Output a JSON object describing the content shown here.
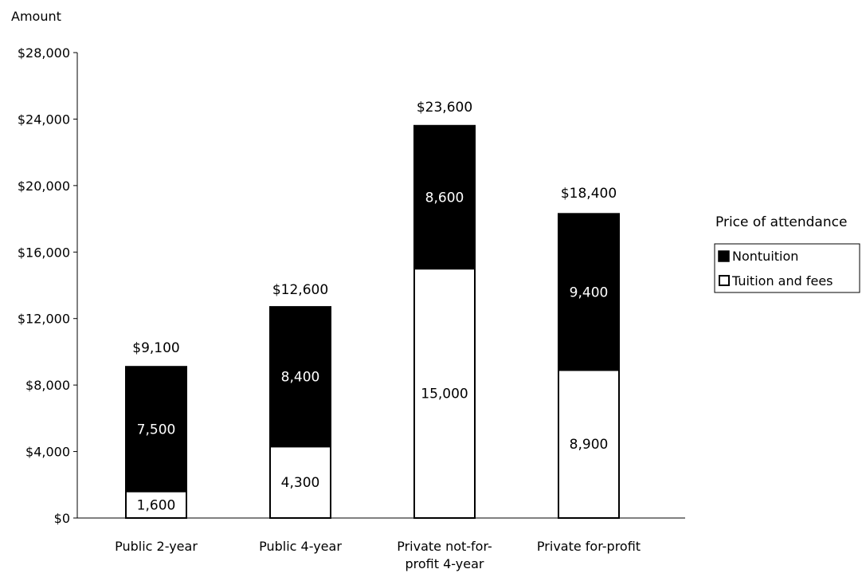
{
  "chart_data": {
    "type": "bar",
    "stacked": true,
    "ylabel": "Amount",
    "ylim": [
      0,
      28000
    ],
    "yticks": [
      0,
      4000,
      8000,
      12000,
      16000,
      20000,
      24000,
      28000
    ],
    "ytick_labels": [
      "$0",
      "$4,000",
      "$8,000",
      "$12,000",
      "$16,000",
      "$20,000",
      "$24,000",
      "$28,000"
    ],
    "categories": [
      [
        "Public 2-year"
      ],
      [
        "Public 4-year"
      ],
      [
        "Private not-for-",
        "profit 4-year"
      ],
      [
        "Private for-profit"
      ]
    ],
    "series": [
      {
        "name": "Tuition and fees",
        "values": [
          1600,
          4300,
          15000,
          8900
        ],
        "labels": [
          "1,600",
          "4,300",
          "15,000",
          "8,900"
        ],
        "color": "#ffffff",
        "text_color": "#000000"
      },
      {
        "name": "Nontuition",
        "values": [
          7500,
          8400,
          8600,
          9400
        ],
        "labels": [
          "7,500",
          "8,400",
          "8,600",
          "9,400"
        ],
        "color": "#000000",
        "text_color": "#ffffff"
      }
    ],
    "totals": [
      9100,
      12600,
      23600,
      18400
    ],
    "total_labels": [
      "$9,100",
      "$12,600",
      "$23,600",
      "$18,400"
    ],
    "legend": {
      "title": "Price of attendance",
      "position": "right",
      "entries": [
        "Nontuition",
        "Tuition and fees"
      ]
    },
    "grid": false
  }
}
